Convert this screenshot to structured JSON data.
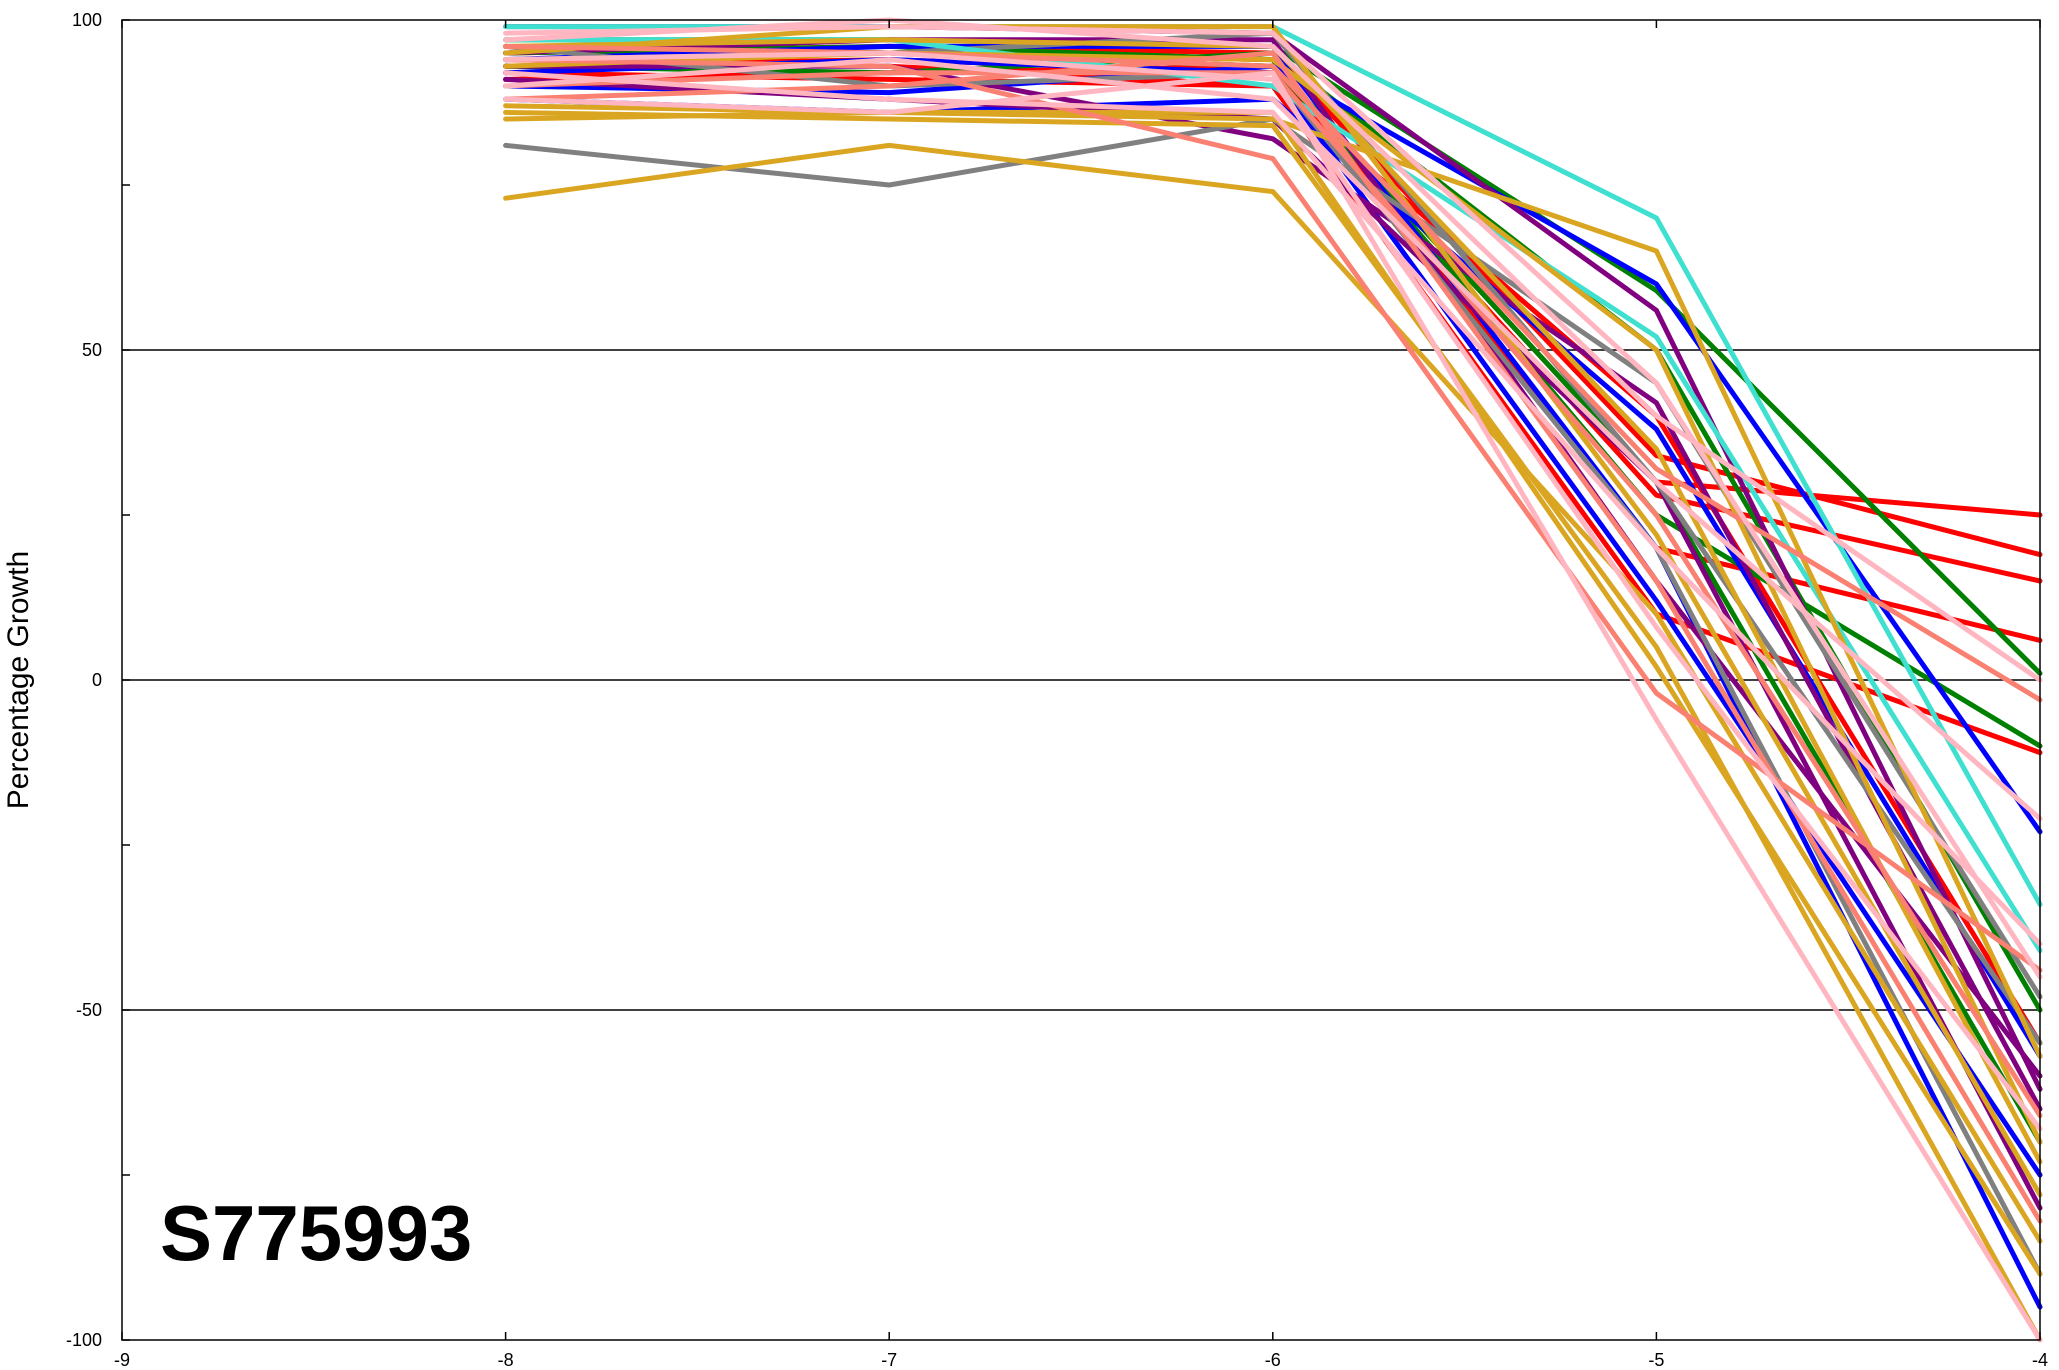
{
  "chart_data": {
    "type": "line",
    "title": "",
    "xlabel": "",
    "ylabel": "Percentage Growth",
    "annotation": "S775993",
    "xlim": [
      -9,
      -4
    ],
    "ylim": [
      -100,
      100
    ],
    "x_ticks": [
      -9,
      -8,
      -7,
      -6,
      -5,
      -4
    ],
    "x_tick_labels": [
      "-9",
      "-8",
      "-7",
      "-6",
      "-5",
      "-4"
    ],
    "y_ticks": [
      100,
      50,
      0,
      -50,
      -100
    ],
    "y_tick_labels": [
      "100",
      "50",
      "0",
      "-50",
      "-100"
    ],
    "y_minor_ticks": [
      75,
      25,
      -25,
      -75
    ],
    "gridlines_y": [
      50,
      0,
      -50
    ],
    "x": [
      -8,
      -7,
      -6,
      -5,
      -4
    ],
    "series": [
      {
        "color": "#FF0000",
        "values": [
          91,
          92,
          93,
          30,
          25
        ]
      },
      {
        "color": "#FF0000",
        "values": [
          95,
          96,
          95,
          34,
          19
        ]
      },
      {
        "color": "#FF0000",
        "values": [
          93,
          94,
          92,
          28,
          15
        ]
      },
      {
        "color": "#FF0000",
        "values": [
          96,
          95,
          94,
          20,
          6
        ]
      },
      {
        "color": "#FF0000",
        "values": [
          94,
          93,
          90,
          10,
          -11
        ]
      },
      {
        "color": "#FF0000",
        "values": [
          92,
          91,
          90,
          40,
          -55
        ]
      },
      {
        "color": "#008000",
        "values": [
          97,
          97,
          96,
          59,
          1
        ]
      },
      {
        "color": "#008000",
        "values": [
          95,
          96,
          94,
          25,
          -10
        ]
      },
      {
        "color": "#008000",
        "values": [
          93,
          92,
          95,
          50,
          -50
        ]
      },
      {
        "color": "#008000",
        "values": [
          96,
          95,
          93,
          30,
          -70
        ]
      },
      {
        "color": "#0000FF",
        "values": [
          90,
          89,
          93,
          60,
          -23
        ]
      },
      {
        "color": "#0000FF",
        "values": [
          88,
          86,
          88,
          38,
          -57
        ]
      },
      {
        "color": "#0000FF",
        "values": [
          94,
          96,
          96,
          20,
          -95
        ]
      },
      {
        "color": "#0000FF",
        "values": [
          92,
          94,
          92,
          12,
          -75
        ]
      },
      {
        "color": "#800080",
        "values": [
          99,
          99,
          98,
          56,
          -62
        ]
      },
      {
        "color": "#800080",
        "values": [
          93,
          93,
          82,
          42,
          -65
        ]
      },
      {
        "color": "#800080",
        "values": [
          91,
          88,
          85,
          30,
          -80
        ]
      },
      {
        "color": "#800080",
        "values": [
          95,
          97,
          97,
          15,
          -60
        ]
      },
      {
        "color": "#808080",
        "values": [
          81,
          75,
          85,
          45,
          -48
        ]
      },
      {
        "color": "#808080",
        "values": [
          96,
          90,
          92,
          20,
          -90
        ]
      },
      {
        "color": "#808080",
        "values": [
          94,
          95,
          98,
          30,
          -55
        ]
      },
      {
        "color": "#40E0D0",
        "values": [
          99,
          99,
          99,
          70,
          -34
        ]
      },
      {
        "color": "#40E0D0",
        "values": [
          97,
          97,
          90,
          52,
          -41
        ]
      },
      {
        "color": "#DAA520",
        "values": [
          73,
          81,
          74,
          10,
          -85
        ]
      },
      {
        "color": "#DAA520",
        "values": [
          85,
          86,
          85,
          65,
          -57
        ]
      },
      {
        "color": "#DAA520",
        "values": [
          86,
          85,
          84,
          5,
          -100
        ]
      },
      {
        "color": "#DAA520",
        "values": [
          93,
          95,
          94,
          50,
          -70
        ]
      },
      {
        "color": "#DAA520",
        "values": [
          95,
          99,
          99,
          22,
          -78
        ]
      },
      {
        "color": "#DAA520",
        "values": [
          87,
          86,
          86,
          2,
          -90
        ]
      },
      {
        "color": "#DAA520",
        "values": [
          96,
          97,
          96,
          35,
          -73
        ]
      },
      {
        "color": "#FA8072",
        "values": [
          94,
          93,
          79,
          -2,
          -44
        ]
      },
      {
        "color": "#FA8072",
        "values": [
          96,
          95,
          93,
          32,
          -3
        ]
      },
      {
        "color": "#FA8072",
        "values": [
          90,
          92,
          92,
          25,
          -66
        ]
      },
      {
        "color": "#FA8072",
        "values": [
          88,
          90,
          95,
          15,
          -82
        ]
      },
      {
        "color": "#FFB6C1",
        "values": [
          97,
          100,
          96,
          40,
          0
        ]
      },
      {
        "color": "#FFB6C1",
        "values": [
          90,
          94,
          88,
          30,
          -21
        ]
      },
      {
        "color": "#FFB6C1",
        "values": [
          88,
          86,
          92,
          -6,
          -100
        ]
      },
      {
        "color": "#FFB6C1",
        "values": [
          92,
          88,
          86,
          20,
          -40
        ]
      },
      {
        "color": "#FFB6C1",
        "values": [
          98,
          99,
          98,
          45,
          -45
        ]
      },
      {
        "color": "#FFB6C1",
        "values": [
          94,
          95,
          91,
          8,
          -68
        ]
      }
    ]
  }
}
